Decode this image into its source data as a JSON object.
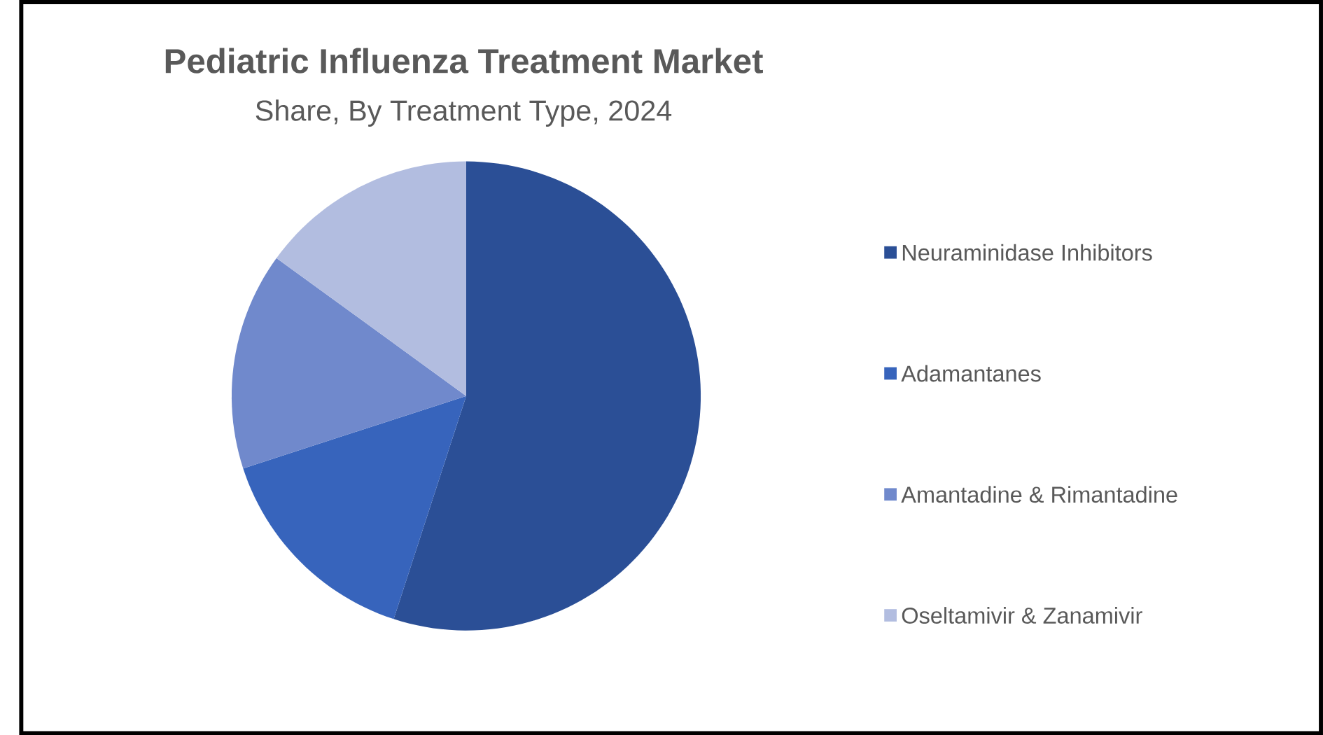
{
  "chart_data": {
    "type": "pie",
    "title": "Pediatric Influenza Treatment Market",
    "subtitle": "Share, By Treatment Type, 2024",
    "categories": [
      "Neuraminidase Inhibitors",
      "Adamantanes",
      "Amantadine & Rimantadine",
      "Oseltamivir & Zanamivir"
    ],
    "values": [
      55,
      15,
      15,
      15
    ],
    "colors": [
      "#2b4f96",
      "#3764bc",
      "#7089cc",
      "#b2bde0"
    ],
    "legend": "right"
  }
}
